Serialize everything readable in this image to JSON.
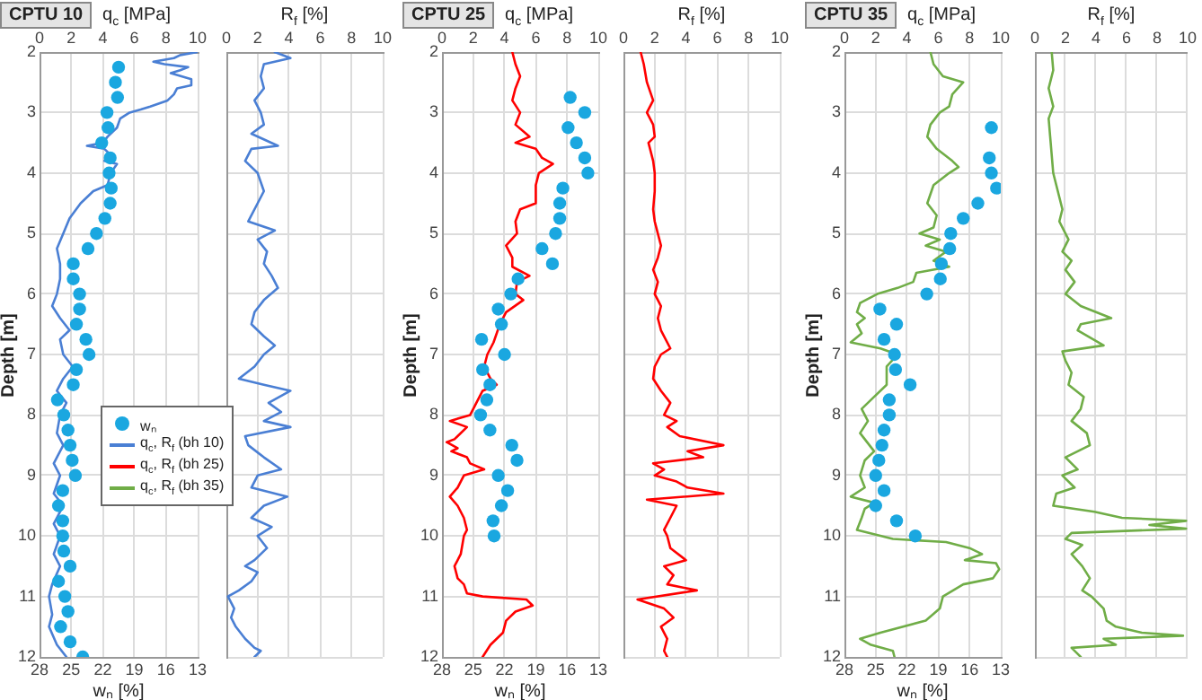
{
  "chart_data": [
    {
      "type": "line",
      "title": "CPTU 10",
      "xlabel": "wₙ [%]",
      "x2label": "q$_{c}$ [MPa]",
      "ylabel": "Depth [m]",
      "xlim": [
        28,
        13
      ],
      "xticks": [
        28,
        25,
        22,
        19,
        16,
        13
      ],
      "x2lim": [
        0,
        10
      ],
      "x2ticks": [
        0,
        2,
        4,
        6,
        8,
        10
      ],
      "ylim": [
        12,
        2
      ],
      "yticks": [
        2,
        3,
        4,
        5,
        6,
        7,
        8,
        9,
        10,
        11,
        12
      ],
      "grid": true,
      "legend": "right",
      "series": [
        {
          "name": "wₙ",
          "type": "scatter",
          "marker": "circle",
          "color": "#1aa7e0",
          "x": [
            20.5,
            20.8,
            20.6,
            21.6,
            21.5,
            22.1,
            21.3,
            21.4,
            21.2,
            21.3,
            21.8,
            22.6,
            23.4,
            24.8,
            24.8,
            24.2,
            24.2,
            24.5,
            23.6,
            23.3,
            24.5,
            24.8,
            26.3,
            25.7,
            25.3,
            25.1,
            24.9,
            24.6,
            25.8,
            26.2,
            25.8,
            25.8,
            25.7,
            25.1,
            26.2,
            25.6,
            25.3,
            26.0,
            25.1,
            23.9
          ],
          "values": [
            2.25,
            2.5,
            2.75,
            3.0,
            3.25,
            3.5,
            3.75,
            4.0,
            4.25,
            4.5,
            4.75,
            5.0,
            5.25,
            5.5,
            5.75,
            6.0,
            6.25,
            6.5,
            6.75,
            7.0,
            7.25,
            7.5,
            7.75,
            8.0,
            8.25,
            8.5,
            8.75,
            9.0,
            9.25,
            9.5,
            9.75,
            10.0,
            10.25,
            10.5,
            10.75,
            11.0,
            11.25,
            11.5,
            11.75,
            12.0
          ]
        },
        {
          "name": "q$_{c}$, R$_{f}$ (bh 10)",
          "type": "line",
          "axis": "x2",
          "color": "#4a7fd4",
          "x": [
            10.0,
            8.9,
            8.5,
            7.2,
            7.9,
            9.4,
            8.9,
            8.3,
            9.6,
            9.6,
            8.7,
            8.5,
            8.1,
            7.0,
            6.4,
            5.7,
            5.1,
            4.9,
            4.3,
            4.0,
            3.0,
            4.1,
            4.7,
            4.1,
            4.9,
            4.5,
            4.3,
            3.4,
            2.6,
            1.9,
            1.5,
            1.1,
            1.3,
            1.3,
            1.1,
            0.8,
            1.3,
            1.9,
            1.3,
            1.5,
            2.1,
            1.5,
            1.1,
            1.7,
            1.3,
            1.1,
            1.5,
            0.9,
            1.3,
            0.9,
            1.5,
            0.9,
            1.3,
            0.9,
            1.3,
            0.8,
            0.6,
            0.8,
            0.6,
            1.1,
            1.7
          ],
          "values": [
            2.0,
            2.05,
            2.1,
            2.16,
            2.2,
            2.25,
            2.3,
            2.35,
            2.45,
            2.55,
            2.6,
            2.7,
            2.8,
            2.9,
            2.95,
            3.0,
            3.1,
            3.25,
            3.4,
            3.5,
            3.55,
            3.6,
            3.75,
            3.8,
            3.85,
            4.0,
            4.2,
            4.3,
            4.5,
            4.75,
            5.0,
            5.25,
            5.5,
            5.75,
            6.0,
            6.2,
            6.4,
            6.6,
            6.75,
            7.0,
            7.2,
            7.4,
            7.6,
            7.8,
            8.0,
            8.3,
            8.5,
            8.8,
            9.0,
            9.3,
            9.5,
            9.8,
            10.0,
            10.3,
            10.5,
            10.8,
            11.0,
            11.3,
            11.5,
            11.8,
            12.0
          ]
        }
      ]
    },
    {
      "type": "line",
      "xlabel": "R$_{f}$ [%]",
      "xlim": [
        0,
        10
      ],
      "xticks": [
        0,
        2,
        4,
        6,
        8,
        10
      ],
      "ylim": [
        12,
        2
      ],
      "yticks": [
        2,
        3,
        4,
        5,
        6,
        7,
        8,
        9,
        10,
        11,
        12
      ],
      "tick_labels": "x",
      "grid": true,
      "series": [
        {
          "color": "#4a7fd4",
          "x": [
            3.1,
            4.1,
            2.4,
            2.2,
            2.4,
            1.8,
            2.2,
            2.4,
            1.6,
            3.3,
            1.6,
            1.2,
            2.0,
            2.4,
            2.0,
            1.4,
            3.1,
            2.0,
            2.6,
            2.4,
            2.9,
            3.3,
            2.4,
            1.8,
            1.6,
            2.4,
            3.1,
            2.4,
            1.8,
            0.8,
            2.4,
            4.1,
            2.7,
            3.5,
            2.4,
            4.1,
            1.2,
            1.4,
            2.4,
            3.5,
            2.0,
            1.6,
            3.9,
            2.4,
            1.6,
            2.9,
            2.0,
            2.6,
            1.8,
            1.2,
            2.0,
            1.6,
            0.8,
            0.1,
            0.5,
            0.3,
            0.6,
            1.2,
            1.8,
            2.2,
            1.8
          ],
          "values": [
            2.0,
            2.1,
            2.2,
            2.4,
            2.6,
            2.8,
            3.0,
            3.2,
            3.35,
            3.55,
            3.6,
            3.8,
            4.0,
            4.3,
            4.5,
            4.8,
            4.95,
            5.1,
            5.3,
            5.5,
            5.7,
            5.9,
            6.1,
            6.3,
            6.5,
            6.7,
            6.85,
            7.0,
            7.2,
            7.4,
            7.5,
            7.6,
            7.8,
            7.95,
            8.1,
            8.2,
            8.35,
            8.5,
            8.7,
            8.9,
            9.0,
            9.2,
            9.35,
            9.5,
            9.7,
            9.85,
            10.0,
            10.2,
            10.4,
            10.5,
            10.6,
            10.75,
            10.9,
            11.0,
            11.2,
            11.35,
            11.5,
            11.7,
            11.85,
            11.9,
            12.0
          ]
        }
      ]
    },
    {
      "type": "line",
      "title": "CPTU 25",
      "xlabel": "wₙ [%]",
      "x2label": "q$_{c}$ [MPa]",
      "ylabel": "Depth [m]",
      "xlim": [
        28,
        13
      ],
      "xticks": [
        28,
        25,
        22,
        19,
        16,
        13
      ],
      "x2lim": [
        0,
        10
      ],
      "x2ticks": [
        0,
        2,
        4,
        6,
        8,
        10
      ],
      "ylim": [
        12,
        2
      ],
      "yticks": [
        2,
        3,
        4,
        5,
        6,
        7,
        8,
        9,
        10,
        11,
        12
      ],
      "grid": true,
      "series": [
        {
          "name": "wₙ",
          "type": "scatter",
          "marker": "circle",
          "color": "#1aa7e0",
          "x": [
            15.7,
            14.3,
            15.9,
            15.1,
            14.3,
            14.0,
            16.4,
            16.7,
            16.7,
            17.1,
            18.4,
            17.4,
            20.7,
            21.4,
            22.6,
            22.3,
            24.2,
            22.0,
            24.1,
            23.4,
            23.7,
            24.3,
            23.4,
            21.3,
            20.8,
            22.6,
            21.7,
            22.3,
            23.1,
            23.0
          ],
          "values": [
            2.75,
            3.0,
            3.25,
            3.5,
            3.75,
            4.0,
            4.25,
            4.5,
            4.75,
            5.0,
            5.25,
            5.5,
            5.75,
            6.0,
            6.25,
            6.5,
            6.75,
            7.0,
            7.25,
            7.5,
            7.75,
            8.0,
            8.25,
            8.5,
            8.75,
            9.0,
            9.25,
            9.5,
            9.75,
            10.0
          ]
        },
        {
          "name": "q$_{c}$, R$_{f}$ (bh 25)",
          "type": "line",
          "axis": "x2",
          "color": "#ff0000",
          "x": [
            4.5,
            4.7,
            5.0,
            4.7,
            4.5,
            5.0,
            4.7,
            5.6,
            4.7,
            6.0,
            6.4,
            7.1,
            6.2,
            6.0,
            6.0,
            5.0,
            4.7,
            4.8,
            4.1,
            4.5,
            4.5,
            5.6,
            4.8,
            4.7,
            5.2,
            4.1,
            3.7,
            3.3,
            2.9,
            2.7,
            3.1,
            3.5,
            2.6,
            2.2,
            1.8,
            0.5,
            1.6,
            0.8,
            0.3,
            1.0,
            0.6,
            1.6,
            1.8,
            2.7,
            1.4,
            1.0,
            0.5,
            1.0,
            1.4,
            1.6,
            1.4,
            1.2,
            0.8,
            1.0,
            1.4,
            1.6,
            2.6,
            5.4,
            5.8,
            4.7,
            4.1,
            3.9,
            3.1,
            2.6
          ],
          "values": [
            2.0,
            2.2,
            2.4,
            2.6,
            2.8,
            3.0,
            3.2,
            3.4,
            3.5,
            3.6,
            3.75,
            3.85,
            4.0,
            4.2,
            4.5,
            4.6,
            4.8,
            5.0,
            5.2,
            5.4,
            5.55,
            5.7,
            5.8,
            6.0,
            6.1,
            6.3,
            6.5,
            6.8,
            7.0,
            7.2,
            7.4,
            7.5,
            7.6,
            7.8,
            8.0,
            8.1,
            8.2,
            8.4,
            8.45,
            8.55,
            8.6,
            8.7,
            8.8,
            8.9,
            9.0,
            9.2,
            9.35,
            9.5,
            9.7,
            9.9,
            10.0,
            10.3,
            10.5,
            10.7,
            10.8,
            10.95,
            11.0,
            11.05,
            11.15,
            11.25,
            11.4,
            11.6,
            11.8,
            12.0
          ]
        }
      ]
    },
    {
      "type": "line",
      "xlabel": "R$_{f}$ [%]",
      "xlim": [
        0,
        10
      ],
      "xticks": [
        0,
        2,
        4,
        6,
        8,
        10
      ],
      "ylim": [
        12,
        2
      ],
      "yticks": [
        2,
        3,
        4,
        5,
        6,
        7,
        8,
        9,
        10,
        11,
        12
      ],
      "tick_labels": "x",
      "grid": true,
      "series": [
        {
          "color": "#ff0000",
          "x": [
            1.1,
            1.3,
            1.5,
            1.9,
            1.5,
            1.9,
            2.0,
            1.6,
            1.9,
            2.0,
            2.0,
            1.9,
            2.0,
            2.2,
            2.4,
            2.2,
            1.9,
            2.2,
            2.0,
            2.4,
            2.2,
            2.4,
            3.0,
            2.4,
            2.0,
            1.9,
            2.4,
            3.0,
            2.6,
            3.4,
            2.8,
            3.6,
            6.4,
            4.1,
            5.1,
            1.9,
            2.6,
            2.0,
            3.4,
            4.1,
            6.4,
            1.5,
            3.4,
            3.0,
            2.6,
            2.8,
            3.0,
            4.0,
            2.6,
            3.2,
            2.8,
            4.7,
            0.9,
            2.6,
            3.2,
            2.4,
            2.8,
            2.6,
            2.8
          ],
          "values": [
            2.0,
            2.2,
            2.5,
            2.8,
            3.0,
            3.2,
            3.4,
            3.5,
            3.8,
            4.0,
            4.3,
            4.6,
            4.8,
            5.0,
            5.2,
            5.4,
            5.6,
            5.8,
            6.0,
            6.2,
            6.4,
            6.6,
            6.9,
            7.0,
            7.2,
            7.4,
            7.6,
            7.8,
            8.0,
            8.1,
            8.2,
            8.35,
            8.5,
            8.6,
            8.7,
            8.8,
            8.9,
            9.0,
            9.1,
            9.2,
            9.3,
            9.4,
            9.5,
            9.7,
            9.9,
            10.0,
            10.2,
            10.4,
            10.5,
            10.65,
            10.8,
            10.9,
            11.05,
            11.2,
            11.35,
            11.5,
            11.7,
            11.9,
            12.0
          ]
        }
      ]
    },
    {
      "type": "line",
      "title": "CPTU 35",
      "xlabel": "wₙ [%]",
      "x2label": "q$_{c}$ [MPa]",
      "ylabel": "Depth [m]",
      "xlim": [
        28,
        13
      ],
      "xticks": [
        28,
        25,
        22,
        19,
        16,
        13
      ],
      "x2lim": [
        0,
        10
      ],
      "x2ticks": [
        0,
        2,
        4,
        6,
        8,
        10
      ],
      "ylim": [
        12,
        2
      ],
      "yticks": [
        2,
        3,
        4,
        5,
        6,
        7,
        8,
        9,
        10,
        11,
        12
      ],
      "grid": true,
      "series": [
        {
          "name": "wₙ",
          "type": "scatter",
          "marker": "circle",
          "color": "#1aa7e0",
          "x": [
            13.9,
            14.1,
            13.9,
            13.4,
            15.2,
            16.6,
            17.8,
            17.9,
            18.7,
            18.8,
            20.1,
            24.6,
            23.0,
            24.2,
            23.2,
            23.1,
            21.7,
            23.7,
            23.7,
            24.2,
            24.4,
            24.7,
            25.0,
            24.2,
            25.0,
            23.0,
            21.2
          ],
          "values": [
            3.25,
            3.75,
            4.0,
            4.25,
            4.5,
            4.75,
            5.0,
            5.25,
            5.5,
            5.75,
            6.0,
            6.25,
            6.5,
            6.75,
            7.0,
            7.25,
            7.5,
            7.75,
            8.0,
            8.25,
            8.5,
            8.75,
            9.0,
            9.25,
            9.5,
            9.75,
            10.0
          ]
        },
        {
          "name": "q$_{c}$, R$_{f}$ (bh 35)",
          "type": "line",
          "axis": "x2",
          "color": "#70ad47",
          "x": [
            5.5,
            5.7,
            6.3,
            7.6,
            6.9,
            6.7,
            6.1,
            5.5,
            5.3,
            5.9,
            6.9,
            7.3,
            6.7,
            5.7,
            5.3,
            5.9,
            5.7,
            4.8,
            6.1,
            5.2,
            6.5,
            5.7,
            6.7,
            4.6,
            4.4,
            3.4,
            2.1,
            1.0,
            0.8,
            1.3,
            0.8,
            1.1,
            0.4,
            2.3,
            3.4,
            2.7,
            2.7,
            1.9,
            1.1,
            1.5,
            1.0,
            1.9,
            1.3,
            1.0,
            1.3,
            0.4,
            1.9,
            1.3,
            1.1,
            0.8,
            3.1,
            6.5,
            8.0,
            8.8,
            7.7,
            9.7,
            9.9,
            9.5,
            7.6,
            6.3,
            6.1,
            5.2,
            2.3,
            1.0,
            1.7,
            3.1,
            3.2
          ],
          "values": [
            2.0,
            2.2,
            2.4,
            2.5,
            2.7,
            2.9,
            3.0,
            3.2,
            3.4,
            3.6,
            3.8,
            3.9,
            4.0,
            4.2,
            4.5,
            4.7,
            4.9,
            5.0,
            5.1,
            5.2,
            5.3,
            5.45,
            5.55,
            5.65,
            5.8,
            5.9,
            6.0,
            6.15,
            6.3,
            6.4,
            6.5,
            6.65,
            6.8,
            6.9,
            7.0,
            7.2,
            7.5,
            7.7,
            7.9,
            8.1,
            8.3,
            8.6,
            8.75,
            9.0,
            9.2,
            9.35,
            9.45,
            9.55,
            9.7,
            9.9,
            10.05,
            10.1,
            10.2,
            10.3,
            10.4,
            10.45,
            10.55,
            10.7,
            10.8,
            11.0,
            11.2,
            11.4,
            11.6,
            11.7,
            11.8,
            11.9,
            12.0
          ]
        }
      ]
    },
    {
      "type": "line",
      "xlabel": "R$_{f}$ [%]",
      "xlim": [
        0,
        10
      ],
      "xticks": [
        0,
        2,
        4,
        6,
        8,
        10
      ],
      "ylim": [
        12,
        2
      ],
      "yticks": [
        2,
        3,
        4,
        5,
        6,
        7,
        8,
        9,
        10,
        11,
        12
      ],
      "tick_labels": "x",
      "grid": true,
      "series": [
        {
          "color": "#70ad47",
          "x": [
            1.1,
            1.2,
            0.9,
            1.2,
            0.9,
            1.0,
            1.1,
            1.2,
            1.4,
            1.6,
            1.8,
            1.6,
            2.2,
            1.8,
            2.4,
            2.0,
            2.6,
            2.0,
            3.0,
            5.0,
            3.0,
            2.8,
            4.5,
            1.8,
            2.0,
            2.4,
            2.2,
            3.2,
            3.0,
            2.4,
            3.4,
            3.6,
            2.0,
            2.8,
            1.8,
            2.6,
            1.4,
            1.2,
            3.9,
            5.7,
            9.9,
            7.5,
            9.9,
            2.4,
            2.0,
            3.1,
            2.4,
            3.1,
            3.6,
            3.1,
            3.7,
            4.5,
            4.7,
            5.3,
            7.0,
            9.7,
            4.5,
            5.3,
            2.4,
            2.8,
            3.0
          ],
          "values": [
            2.0,
            2.3,
            2.6,
            2.9,
            3.1,
            3.4,
            3.7,
            4.0,
            4.2,
            4.4,
            4.6,
            4.8,
            5.1,
            5.3,
            5.45,
            5.6,
            5.8,
            6.0,
            6.2,
            6.4,
            6.5,
            6.6,
            6.85,
            6.95,
            7.1,
            7.3,
            7.5,
            7.7,
            7.9,
            8.1,
            8.3,
            8.5,
            8.7,
            8.9,
            9.0,
            9.2,
            9.3,
            9.5,
            9.6,
            9.7,
            9.75,
            9.82,
            9.88,
            9.95,
            10.05,
            10.15,
            10.3,
            10.5,
            10.7,
            10.9,
            11.0,
            11.2,
            11.4,
            11.5,
            11.6,
            11.65,
            11.7,
            11.8,
            11.85,
            11.95,
            12.0
          ]
        }
      ]
    }
  ]
}
